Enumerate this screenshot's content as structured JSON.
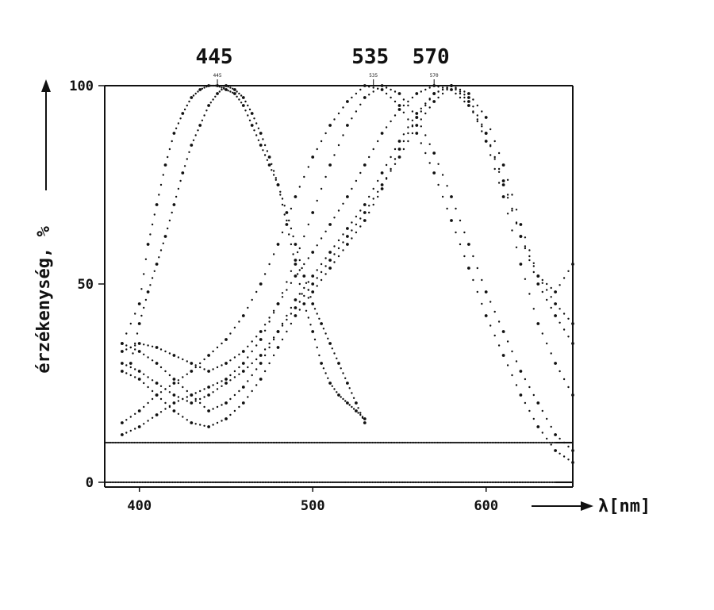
{
  "chart_data": {
    "type": "scatter",
    "xlabel": "λ[nm]",
    "ylabel": "érzékenység, %",
    "xlim": [
      380,
      650
    ],
    "ylim": [
      0,
      100
    ],
    "x_ticks": [
      400,
      500,
      600
    ],
    "y_ticks": [
      0,
      50,
      100
    ],
    "grid": false,
    "peaks": [
      {
        "value": 445,
        "label": "445",
        "small_label": "445"
      },
      {
        "value": 535,
        "label": "535",
        "small_label": "535"
      },
      {
        "value": 570,
        "label": "570",
        "small_label": "570"
      }
    ],
    "series": [
      {
        "x": [
          390,
          400,
          405,
          410,
          415,
          420,
          425,
          430,
          435,
          440,
          445,
          450,
          455,
          460,
          465,
          470,
          475,
          480,
          485,
          490,
          495,
          500,
          505,
          510,
          515,
          520,
          525,
          530
        ],
        "y": [
          35,
          45,
          60,
          70,
          80,
          88,
          93,
          97,
          99,
          100,
          100,
          99,
          98,
          95,
          90,
          85,
          80,
          75,
          68,
          60,
          52,
          45,
          40,
          35,
          30,
          25,
          20,
          15
        ]
      },
      {
        "x": [
          395,
          400,
          405,
          410,
          415,
          420,
          425,
          430,
          435,
          440,
          445,
          450,
          455,
          460,
          465,
          470,
          475,
          480,
          485,
          490,
          495,
          500,
          505,
          510,
          515,
          520,
          525,
          530
        ],
        "y": [
          30,
          40,
          48,
          55,
          62,
          70,
          78,
          85,
          90,
          95,
          98,
          100,
          99,
          97,
          93,
          88,
          82,
          75,
          65,
          55,
          45,
          38,
          30,
          25,
          22,
          20,
          18,
          16
        ]
      },
      {
        "x": [
          390,
          400,
          410,
          420,
          430,
          440,
          450,
          460,
          470,
          480,
          490,
          500,
          510,
          520,
          530,
          540,
          550,
          560,
          570,
          580,
          590,
          600,
          610,
          620,
          630,
          640,
          650
        ],
        "y": [
          15,
          18,
          22,
          25,
          28,
          32,
          36,
          42,
          50,
          60,
          72,
          82,
          90,
          96,
          100,
          99,
          95,
          88,
          78,
          66,
          54,
          42,
          32,
          22,
          14,
          8,
          5
        ]
      },
      {
        "x": [
          390,
          400,
          410,
          420,
          430,
          440,
          450,
          460,
          470,
          480,
          490,
          500,
          510,
          520,
          530,
          540,
          550,
          560,
          570,
          580,
          590,
          600,
          610,
          620,
          630,
          640,
          650
        ],
        "y": [
          12,
          14,
          17,
          20,
          22,
          24,
          26,
          30,
          36,
          45,
          56,
          68,
          80,
          90,
          97,
          100,
          98,
          92,
          83,
          72,
          60,
          48,
          38,
          28,
          20,
          12,
          8
        ]
      },
      {
        "x": [
          390,
          400,
          410,
          420,
          430,
          440,
          450,
          460,
          470,
          480,
          490,
          500,
          510,
          520,
          530,
          540,
          550,
          560,
          570,
          580,
          590,
          600,
          610,
          620,
          630,
          640,
          650
        ],
        "y": [
          33,
          35,
          34,
          32,
          30,
          28,
          30,
          33,
          38,
          45,
          52,
          58,
          65,
          72,
          80,
          88,
          94,
          98,
          100,
          99,
          95,
          88,
          75,
          62,
          50,
          42,
          35
        ]
      },
      {
        "x": [
          390,
          400,
          410,
          420,
          430,
          440,
          450,
          460,
          470,
          480,
          490,
          500,
          510,
          520,
          530,
          540,
          550,
          560,
          570,
          580,
          590,
          600,
          610,
          620,
          630,
          640,
          650
        ],
        "y": [
          30,
          28,
          25,
          22,
          20,
          22,
          25,
          28,
          32,
          38,
          44,
          50,
          56,
          62,
          68,
          75,
          82,
          90,
          96,
          100,
          98,
          92,
          80,
          65,
          52,
          45,
          40
        ]
      },
      {
        "x": [
          390,
          400,
          410,
          420,
          430,
          440,
          450,
          460,
          470,
          480,
          490,
          500,
          510,
          520,
          530,
          540,
          550,
          560,
          570,
          580,
          590,
          600,
          610,
          620,
          630,
          640,
          650
        ],
        "y": [
          35,
          33,
          30,
          26,
          22,
          18,
          20,
          24,
          30,
          38,
          46,
          52,
          58,
          64,
          70,
          78,
          86,
          93,
          98,
          100,
          97,
          88,
          76,
          62,
          52,
          48,
          55
        ]
      },
      {
        "x": [
          390,
          400,
          410,
          420,
          430,
          440,
          450,
          460,
          470,
          480,
          490,
          500,
          510,
          520,
          530,
          540,
          550,
          560,
          570,
          580,
          590,
          600,
          610,
          620,
          630,
          640,
          650
        ],
        "y": [
          28,
          26,
          22,
          18,
          15,
          14,
          16,
          20,
          26,
          34,
          42,
          48,
          54,
          60,
          66,
          74,
          84,
          92,
          98,
          100,
          96,
          86,
          72,
          55,
          40,
          30,
          22
        ]
      },
      {
        "x": [
          380,
          400,
          420,
          440,
          460,
          480,
          500,
          520,
          540,
          560,
          580,
          600,
          620,
          640,
          650
        ],
        "y": [
          10,
          10,
          10,
          10,
          10,
          10,
          10,
          10,
          10,
          10,
          10,
          10,
          10,
          10,
          10
        ]
      },
      {
        "x": [
          380,
          400,
          420,
          440,
          460,
          480,
          500,
          520,
          540,
          560,
          580,
          600,
          620,
          640,
          650
        ],
        "y": [
          0,
          0,
          0,
          0,
          0,
          0,
          0,
          0,
          0,
          0,
          0,
          0,
          0,
          0,
          0
        ]
      }
    ]
  }
}
